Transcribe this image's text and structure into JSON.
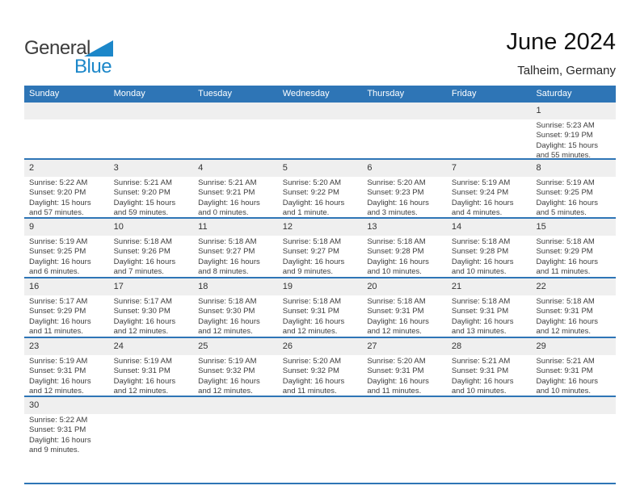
{
  "logo": {
    "part1": "General",
    "part2": "Blue"
  },
  "header": {
    "title": "June 2024",
    "subtitle": "Talheim, Germany"
  },
  "colors": {
    "header_blue": "#2e75b6",
    "logo_blue": "#1c87c9",
    "band_gray": "#efefef",
    "text_dark": "#3d3d3d"
  },
  "weekdays": [
    "Sunday",
    "Monday",
    "Tuesday",
    "Wednesday",
    "Thursday",
    "Friday",
    "Saturday"
  ],
  "weeks": [
    [
      null,
      null,
      null,
      null,
      null,
      null,
      {
        "day": "1",
        "sunrise": "Sunrise: 5:23 AM",
        "sunset": "Sunset: 9:19 PM",
        "daylight": "Daylight: 15 hours and 55 minutes."
      }
    ],
    [
      {
        "day": "2",
        "sunrise": "Sunrise: 5:22 AM",
        "sunset": "Sunset: 9:20 PM",
        "daylight": "Daylight: 15 hours and 57 minutes."
      },
      {
        "day": "3",
        "sunrise": "Sunrise: 5:21 AM",
        "sunset": "Sunset: 9:20 PM",
        "daylight": "Daylight: 15 hours and 59 minutes."
      },
      {
        "day": "4",
        "sunrise": "Sunrise: 5:21 AM",
        "sunset": "Sunset: 9:21 PM",
        "daylight": "Daylight: 16 hours and 0 minutes."
      },
      {
        "day": "5",
        "sunrise": "Sunrise: 5:20 AM",
        "sunset": "Sunset: 9:22 PM",
        "daylight": "Daylight: 16 hours and 1 minute."
      },
      {
        "day": "6",
        "sunrise": "Sunrise: 5:20 AM",
        "sunset": "Sunset: 9:23 PM",
        "daylight": "Daylight: 16 hours and 3 minutes."
      },
      {
        "day": "7",
        "sunrise": "Sunrise: 5:19 AM",
        "sunset": "Sunset: 9:24 PM",
        "daylight": "Daylight: 16 hours and 4 minutes."
      },
      {
        "day": "8",
        "sunrise": "Sunrise: 5:19 AM",
        "sunset": "Sunset: 9:25 PM",
        "daylight": "Daylight: 16 hours and 5 minutes."
      }
    ],
    [
      {
        "day": "9",
        "sunrise": "Sunrise: 5:19 AM",
        "sunset": "Sunset: 9:25 PM",
        "daylight": "Daylight: 16 hours and 6 minutes."
      },
      {
        "day": "10",
        "sunrise": "Sunrise: 5:18 AM",
        "sunset": "Sunset: 9:26 PM",
        "daylight": "Daylight: 16 hours and 7 minutes."
      },
      {
        "day": "11",
        "sunrise": "Sunrise: 5:18 AM",
        "sunset": "Sunset: 9:27 PM",
        "daylight": "Daylight: 16 hours and 8 minutes."
      },
      {
        "day": "12",
        "sunrise": "Sunrise: 5:18 AM",
        "sunset": "Sunset: 9:27 PM",
        "daylight": "Daylight: 16 hours and 9 minutes."
      },
      {
        "day": "13",
        "sunrise": "Sunrise: 5:18 AM",
        "sunset": "Sunset: 9:28 PM",
        "daylight": "Daylight: 16 hours and 10 minutes."
      },
      {
        "day": "14",
        "sunrise": "Sunrise: 5:18 AM",
        "sunset": "Sunset: 9:28 PM",
        "daylight": "Daylight: 16 hours and 10 minutes."
      },
      {
        "day": "15",
        "sunrise": "Sunrise: 5:18 AM",
        "sunset": "Sunset: 9:29 PM",
        "daylight": "Daylight: 16 hours and 11 minutes."
      }
    ],
    [
      {
        "day": "16",
        "sunrise": "Sunrise: 5:17 AM",
        "sunset": "Sunset: 9:29 PM",
        "daylight": "Daylight: 16 hours and 11 minutes."
      },
      {
        "day": "17",
        "sunrise": "Sunrise: 5:17 AM",
        "sunset": "Sunset: 9:30 PM",
        "daylight": "Daylight: 16 hours and 12 minutes."
      },
      {
        "day": "18",
        "sunrise": "Sunrise: 5:18 AM",
        "sunset": "Sunset: 9:30 PM",
        "daylight": "Daylight: 16 hours and 12 minutes."
      },
      {
        "day": "19",
        "sunrise": "Sunrise: 5:18 AM",
        "sunset": "Sunset: 9:31 PM",
        "daylight": "Daylight: 16 hours and 12 minutes."
      },
      {
        "day": "20",
        "sunrise": "Sunrise: 5:18 AM",
        "sunset": "Sunset: 9:31 PM",
        "daylight": "Daylight: 16 hours and 12 minutes."
      },
      {
        "day": "21",
        "sunrise": "Sunrise: 5:18 AM",
        "sunset": "Sunset: 9:31 PM",
        "daylight": "Daylight: 16 hours and 13 minutes."
      },
      {
        "day": "22",
        "sunrise": "Sunrise: 5:18 AM",
        "sunset": "Sunset: 9:31 PM",
        "daylight": "Daylight: 16 hours and 12 minutes."
      }
    ],
    [
      {
        "day": "23",
        "sunrise": "Sunrise: 5:19 AM",
        "sunset": "Sunset: 9:31 PM",
        "daylight": "Daylight: 16 hours and 12 minutes."
      },
      {
        "day": "24",
        "sunrise": "Sunrise: 5:19 AM",
        "sunset": "Sunset: 9:31 PM",
        "daylight": "Daylight: 16 hours and 12 minutes."
      },
      {
        "day": "25",
        "sunrise": "Sunrise: 5:19 AM",
        "sunset": "Sunset: 9:32 PM",
        "daylight": "Daylight: 16 hours and 12 minutes."
      },
      {
        "day": "26",
        "sunrise": "Sunrise: 5:20 AM",
        "sunset": "Sunset: 9:32 PM",
        "daylight": "Daylight: 16 hours and 11 minutes."
      },
      {
        "day": "27",
        "sunrise": "Sunrise: 5:20 AM",
        "sunset": "Sunset: 9:31 PM",
        "daylight": "Daylight: 16 hours and 11 minutes."
      },
      {
        "day": "28",
        "sunrise": "Sunrise: 5:21 AM",
        "sunset": "Sunset: 9:31 PM",
        "daylight": "Daylight: 16 hours and 10 minutes."
      },
      {
        "day": "29",
        "sunrise": "Sunrise: 5:21 AM",
        "sunset": "Sunset: 9:31 PM",
        "daylight": "Daylight: 16 hours and 10 minutes."
      }
    ],
    [
      {
        "day": "30",
        "sunrise": "Sunrise: 5:22 AM",
        "sunset": "Sunset: 9:31 PM",
        "daylight": "Daylight: 16 hours and 9 minutes."
      },
      null,
      null,
      null,
      null,
      null,
      null
    ]
  ]
}
